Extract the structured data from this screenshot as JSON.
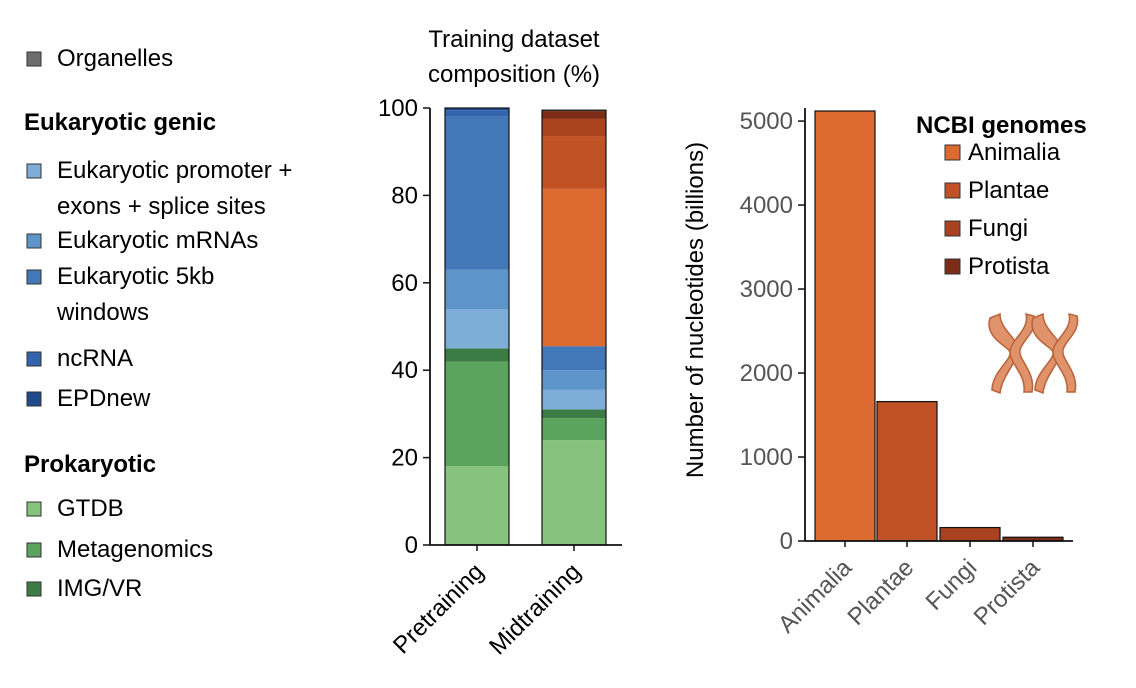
{
  "legend_left": {
    "top_item": {
      "label": "Organelles",
      "color": "#6d6d6d"
    },
    "groups": [
      {
        "heading": "Eukaryotic genic",
        "items": [
          {
            "lines": [
              "Eukaryotic promoter +",
              "exons + splice sites"
            ],
            "color": "#7eadd8"
          },
          {
            "lines": [
              "Eukaryotic mRNAs"
            ],
            "color": "#5d95cb"
          },
          {
            "lines": [
              "Eukaryotic 5kb",
              "windows"
            ],
            "color": "#4277b8"
          },
          {
            "lines": [
              "ncRNA"
            ],
            "color": "#3264ae"
          },
          {
            "lines": [
              "EPDnew"
            ],
            "color": "#1f4a8c"
          }
        ]
      },
      {
        "heading": "Prokaryotic",
        "items": [
          {
            "lines": [
              "GTDB"
            ],
            "color": "#86c47e"
          },
          {
            "lines": [
              "Metagenomics"
            ],
            "color": "#5aa45e"
          },
          {
            "lines": [
              "IMG/VR"
            ],
            "color": "#3c7c44"
          }
        ]
      }
    ]
  },
  "chart_data": [
    {
      "type": "bar",
      "stacked": true,
      "title_lines": [
        "Training dataset",
        "composition (%)"
      ],
      "categories": [
        "Pretraining",
        "Midtraining"
      ],
      "ylim": [
        0,
        100
      ],
      "yticks": [
        0,
        20,
        40,
        60,
        80,
        100
      ],
      "series": [
        {
          "name": "GTDB",
          "color": "#86c47e",
          "values": [
            18,
            24
          ]
        },
        {
          "name": "Metagenomics",
          "color": "#5aa45e",
          "values": [
            24,
            5
          ]
        },
        {
          "name": "IMG/VR",
          "color": "#3c7c44",
          "values": [
            3,
            2
          ]
        },
        {
          "name": "Eukaryotic promoter + exons + splice sites",
          "color": "#7eadd8",
          "values": [
            9,
            4.5
          ]
        },
        {
          "name": "Eukaryotic mRNAs",
          "color": "#5d95cb",
          "values": [
            9,
            4.5
          ]
        },
        {
          "name": "Eukaryotic 5kb windows",
          "color": "#4277b8",
          "values": [
            35,
            5.5
          ]
        },
        {
          "name": "ncRNA",
          "color": "#3264ae",
          "values": [
            1.5,
            0
          ]
        },
        {
          "name": "EPDnew",
          "color": "#1f4a8c",
          "values": [
            0.5,
            0
          ]
        },
        {
          "name": "Animalia",
          "color": "#dd6a30",
          "values": [
            0,
            36
          ]
        },
        {
          "name": "Plantae",
          "color": "#c15226",
          "values": [
            0,
            12
          ]
        },
        {
          "name": "Fungi",
          "color": "#a8421f",
          "values": [
            0,
            4
          ]
        },
        {
          "name": "Protista",
          "color": "#7c2c17",
          "values": [
            0,
            1.8
          ]
        },
        {
          "name": "Organelles",
          "color": "#6d6d6d",
          "values": [
            0,
            0.2
          ]
        }
      ]
    },
    {
      "type": "bar",
      "ylabel": "Number of nucleotides (billions)",
      "ylim": [
        0,
        5200
      ],
      "yticks": [
        0,
        1000,
        2000,
        3000,
        4000,
        5000
      ],
      "categories": [
        "Animalia",
        "Plantae",
        "Fungi",
        "Protista"
      ],
      "values": [
        5120,
        1660,
        160,
        45
      ],
      "colors": [
        "#dd6a30",
        "#c15226",
        "#a8421f",
        "#7c2c17"
      ],
      "legend_title": "NCBI genomes",
      "legend": [
        "Animalia",
        "Plantae",
        "Fungi",
        "Protista"
      ]
    }
  ],
  "palette": {
    "chromosome_fill": "#e0926a",
    "chromosome_stroke": "#b8633a",
    "axis": "#111111"
  }
}
